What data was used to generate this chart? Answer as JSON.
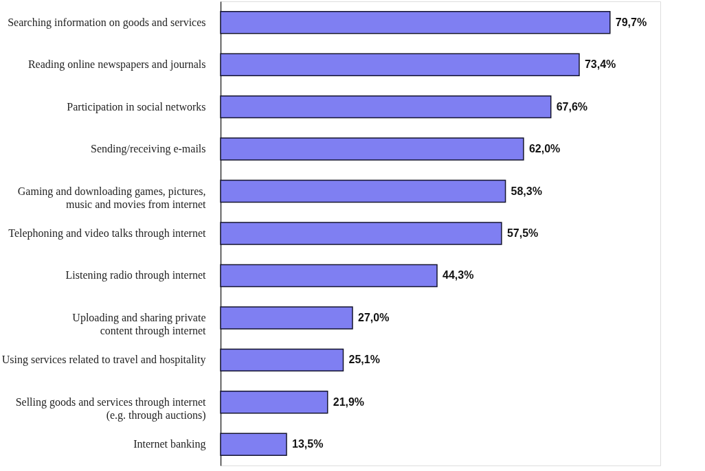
{
  "chart_data": {
    "type": "bar",
    "orientation": "horizontal",
    "categories": [
      "Searching information on goods and services",
      "Reading online newspapers and journals",
      "Participation in social networks",
      "Sending/receiving e-mails",
      "Gaming and downloading games, pictures,\nmusic and movies from internet",
      "Telephoning and video talks through internet",
      "Listening radio through internet",
      "Uploading and sharing private\ncontent through internet",
      "Using services related to travel and hospitality",
      "Selling goods and services through internet\n(e.g. through auctions)",
      "Internet banking"
    ],
    "values": [
      79.7,
      73.4,
      67.6,
      62.0,
      58.3,
      57.5,
      44.3,
      27.0,
      25.1,
      21.9,
      13.5
    ],
    "value_labels": [
      "79,7%",
      "73,4%",
      "67,6%",
      "62,0%",
      "58,3%",
      "57,5%",
      "44,3%",
      "27,0%",
      "25,1%",
      "21,9%",
      "13,5%"
    ],
    "color": "#7f7ff2",
    "xlim": [
      0,
      90
    ]
  }
}
